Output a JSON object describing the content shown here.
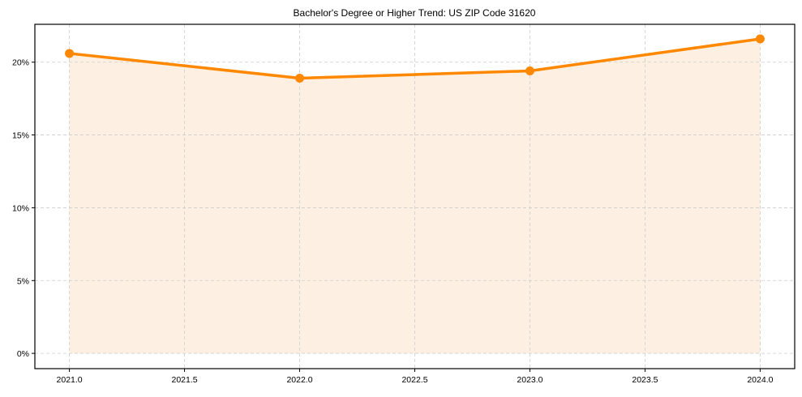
{
  "chart_data": {
    "type": "line",
    "title": "Bachelor's Degree or Higher Trend: US ZIP Code 31620",
    "xlabel": "",
    "ylabel": "",
    "x": [
      2021,
      2022,
      2023,
      2024
    ],
    "series": [
      {
        "name": "Bachelor's Degree or Higher",
        "values": [
          20.6,
          18.9,
          19.4,
          21.6
        ],
        "color": "#ff8800",
        "fill": true,
        "fill_color": "#fdf0e2",
        "marker": "circle"
      }
    ],
    "xlim": [
      2020.85,
      2024.15
    ],
    "ylim": [
      -1.05,
      22.6
    ],
    "xticks": [
      2021.0,
      2021.5,
      2022.0,
      2022.5,
      2023.0,
      2023.5,
      2024.0
    ],
    "xtick_labels": [
      "2021.0",
      "2021.5",
      "2022.0",
      "2022.5",
      "2023.0",
      "2023.5",
      "2024.0"
    ],
    "yticks": [
      0,
      5,
      10,
      15,
      20
    ],
    "ytick_labels": [
      "0%",
      "5%",
      "10%",
      "15%",
      "20%"
    ],
    "grid": true,
    "legend": null
  }
}
